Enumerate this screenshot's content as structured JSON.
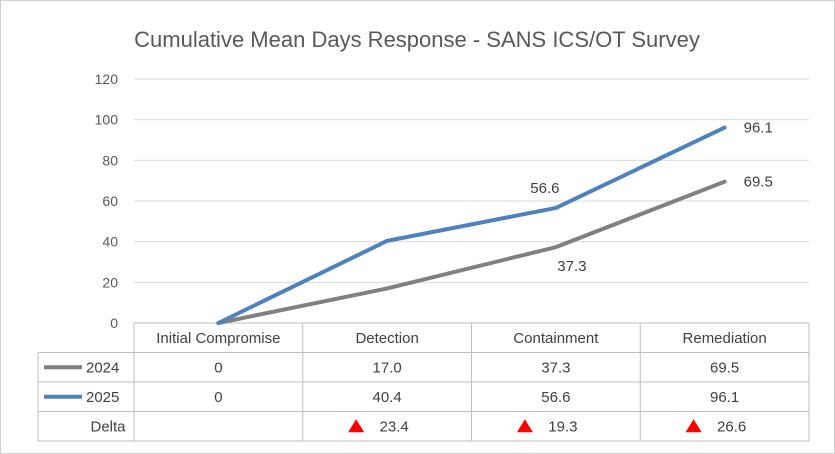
{
  "chart_data": {
    "type": "line",
    "title": "Cumulative Mean Days Response - SANS ICS/OT Survey",
    "categories": [
      "Initial Compromise",
      "Detection",
      "Containment",
      "Remediation"
    ],
    "ylim": [
      0,
      120
    ],
    "yticks": [
      0,
      20,
      40,
      60,
      80,
      100,
      120
    ],
    "yticks_text": [
      "0",
      "20",
      "40",
      "60",
      "80",
      "100",
      "120"
    ],
    "grid": true,
    "legend": "data-table",
    "series": [
      {
        "name": "2024",
        "color": "#808080",
        "values": [
          0,
          17.0,
          37.3,
          69.5
        ],
        "table_values": [
          "0",
          "17.0",
          "37.3",
          "69.5"
        ],
        "point_labels": [
          "",
          "",
          "37.3",
          "69.5"
        ]
      },
      {
        "name": "2025",
        "color": "#4f81bd",
        "values": [
          0,
          40.4,
          56.6,
          96.1
        ],
        "table_values": [
          "0",
          "40.4",
          "56.6",
          "96.1"
        ],
        "point_labels": [
          "",
          "",
          "56.6",
          "96.1"
        ]
      }
    ],
    "delta": {
      "name": "Delta",
      "marker_color": "#ff0000",
      "values": [
        "",
        "23.4",
        "19.3",
        "26.6"
      ]
    }
  }
}
